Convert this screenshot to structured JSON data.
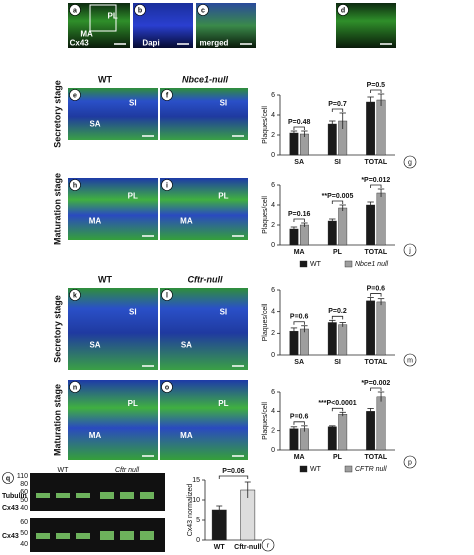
{
  "group_headers": [
    "WT",
    "Nbce1-null",
    "WT",
    "Cftr-null"
  ],
  "stage_labels": [
    "Secretory stage",
    "Maturation stage",
    "Secretory stage",
    "Maturation stage"
  ],
  "image_panels": [
    {
      "letter": "a",
      "labels": [
        "PL",
        "MA",
        "Cx43"
      ]
    },
    {
      "letter": "b",
      "labels": [
        "Dapi"
      ]
    },
    {
      "letter": "c",
      "labels": [
        "merged"
      ]
    },
    {
      "letter": "d",
      "labels": []
    },
    {
      "letter": "e",
      "labels": [
        "SI",
        "SA"
      ]
    },
    {
      "letter": "f",
      "labels": [
        "SI"
      ]
    },
    {
      "letter": "h",
      "labels": [
        "PL",
        "MA"
      ]
    },
    {
      "letter": "i",
      "labels": [
        "PL",
        "MA"
      ]
    },
    {
      "letter": "k",
      "labels": [
        "SI",
        "SA"
      ]
    },
    {
      "letter": "l",
      "labels": [
        "SI",
        "SA"
      ]
    },
    {
      "letter": "n",
      "labels": [
        "PL",
        "MA"
      ]
    },
    {
      "letter": "o",
      "labels": [
        "PL",
        "MA"
      ]
    }
  ],
  "blot": {
    "letter": "q",
    "lanes": [
      "WT",
      "Cftr null"
    ],
    "top": {
      "markers": [
        110,
        80,
        60,
        50,
        40
      ],
      "proteins": [
        "Tubulin",
        "Cx43"
      ]
    },
    "bottom": {
      "markers": [
        60,
        50,
        40
      ],
      "proteins": [
        "Cx43"
      ]
    }
  },
  "chart_data": [
    {
      "type": "bar",
      "letter": "g",
      "ylabel": "Plaques/cell",
      "categories": [
        "SA",
        "SI",
        "TOTAL"
      ],
      "series": [
        {
          "color": "#1a1a1a",
          "values": [
            2.2,
            3.1,
            5.3
          ],
          "errors": [
            0.2,
            0.3,
            0.5
          ]
        },
        {
          "color": "#9e9e9e",
          "values": [
            2.1,
            3.4,
            5.5
          ],
          "errors": [
            0.3,
            0.8,
            0.6
          ]
        }
      ],
      "annotations": [
        "P=0.48",
        "P=0.7",
        "P=0.5"
      ],
      "ylim": [
        0,
        6
      ],
      "yticks": [
        0,
        2,
        4,
        6
      ]
    },
    {
      "type": "bar",
      "letter": "j",
      "ylabel": "Plaques/cell",
      "categories": [
        "MA",
        "PL",
        "TOTAL"
      ],
      "series": [
        {
          "name": "WT",
          "color": "#1a1a1a",
          "values": [
            1.6,
            2.4,
            4.0
          ],
          "errors": [
            0.2,
            0.2,
            0.3
          ]
        },
        {
          "name": "Nbce1 null",
          "color": "#9e9e9e",
          "values": [
            2.0,
            3.7,
            5.2
          ],
          "errors": [
            0.2,
            0.3,
            0.4
          ]
        }
      ],
      "annotations": [
        "P=0.16",
        "**P=0.005",
        "*P=0.012"
      ],
      "ylim": [
        0,
        6
      ],
      "yticks": [
        0,
        2,
        4,
        6
      ]
    },
    {
      "type": "bar",
      "letter": "m",
      "ylabel": "Plaques/cell",
      "categories": [
        "SA",
        "SI",
        "TOTAL"
      ],
      "series": [
        {
          "color": "#1a1a1a",
          "values": [
            2.2,
            3.0,
            5.0
          ],
          "errors": [
            0.3,
            0.2,
            0.3
          ]
        },
        {
          "color": "#9e9e9e",
          "values": [
            2.4,
            2.8,
            4.9
          ],
          "errors": [
            0.3,
            0.2,
            0.3
          ]
        }
      ],
      "annotations": [
        "P=0.6",
        "P=0.2",
        "P=0.6"
      ],
      "ylim": [
        0,
        6
      ],
      "yticks": [
        0,
        2,
        4,
        6
      ]
    },
    {
      "type": "bar",
      "letter": "p",
      "ylabel": "Plaques/cell",
      "categories": [
        "MA",
        "PL",
        "TOTAL"
      ],
      "series": [
        {
          "name": "WT",
          "color": "#1a1a1a",
          "values": [
            2.2,
            2.4,
            4.0
          ],
          "errors": [
            0.2,
            0.1,
            0.3
          ]
        },
        {
          "name": "CFTR null",
          "color": "#9e9e9e",
          "values": [
            2.2,
            3.7,
            5.5
          ],
          "errors": [
            0.3,
            0.2,
            0.5
          ]
        }
      ],
      "annotations": [
        "P=0.6",
        "***P<0.0001",
        "*P=0.002"
      ],
      "ylim": [
        0,
        6
      ],
      "yticks": [
        0,
        2,
        4,
        6
      ]
    },
    {
      "type": "bar",
      "letter": "r",
      "ylabel": "Cx43 normalized",
      "categories": [
        "WT",
        "Cftr-null"
      ],
      "colors": [
        "#1a1a1a",
        "#dddddd"
      ],
      "values": [
        7.5,
        12.5
      ],
      "errors": [
        1.0,
        2.0
      ],
      "annotation": "P=0.06",
      "ylim": [
        0,
        15
      ],
      "yticks": [
        0,
        5,
        10,
        15
      ]
    }
  ]
}
